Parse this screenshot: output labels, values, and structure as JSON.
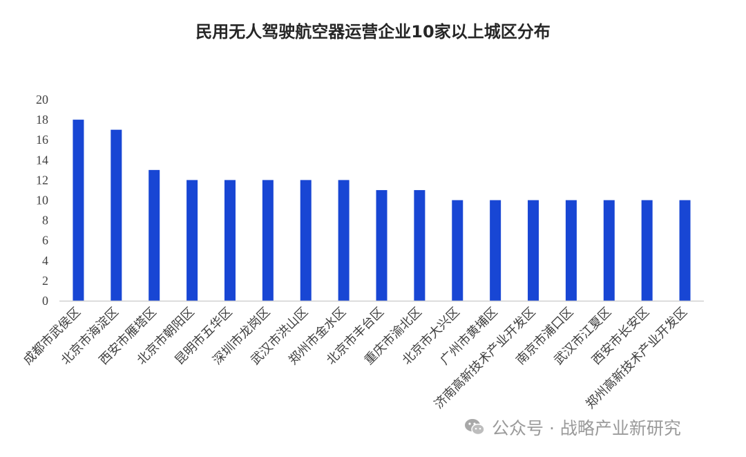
{
  "chart_data": {
    "type": "bar",
    "title": "民用无人驾驶航空器运营企业10家以上城区分布",
    "categories": [
      "成都市武侯区",
      "北京市海淀区",
      "西安市雁塔区",
      "北京市朝阳区",
      "昆明市五华区",
      "深圳市龙岗区",
      "武汉市洪山区",
      "郑州市金水区",
      "北京市丰台区",
      "重庆市渝北区",
      "北京市大兴区",
      "广州市黄埔区",
      "济南高新技术产业开发区",
      "南京市浦口区",
      "武汉市江夏区",
      "西安市长安区",
      "郑州高新技术产业开发区"
    ],
    "values": [
      18,
      17,
      13,
      12,
      12,
      12,
      12,
      12,
      11,
      11,
      10,
      10,
      10,
      10,
      10,
      10,
      10
    ],
    "yticks": [
      "0",
      "2",
      "4",
      "6",
      "8",
      "10",
      "12",
      "14",
      "16",
      "18",
      "20"
    ],
    "ylim": [
      0,
      20
    ],
    "grid": false,
    "bar_color": "#1846D4",
    "xlabel": "",
    "ylabel": ""
  },
  "watermark": {
    "text": "公众号 · 战略产业新研究",
    "icon": "wechat-icon",
    "color": "#9a9a9a"
  }
}
